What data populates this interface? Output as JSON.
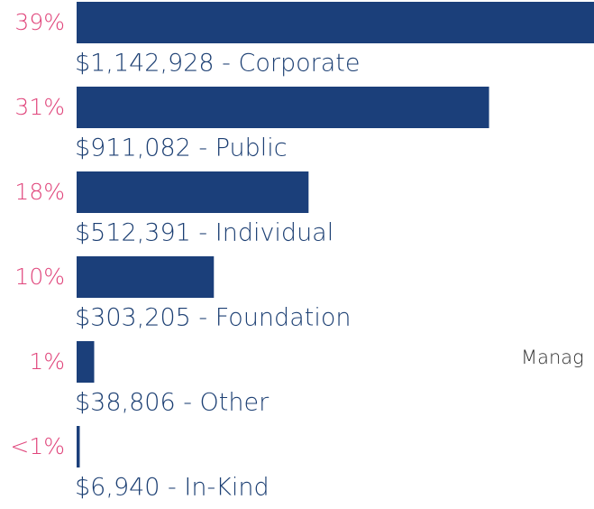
{
  "chart_data": {
    "type": "bar",
    "orientation": "horizontal",
    "labels": [
      "$1,142,928 - Corporate",
      "$911,082 - Public",
      "$512,391 - Individual",
      "$303,205 - Foundation",
      "$38,806 - Other",
      "$6,940 - In-Kind"
    ],
    "values": [
      1142928,
      911082,
      512391,
      303205,
      38806,
      6940
    ],
    "percents": [
      39,
      31,
      18,
      10,
      1,
      0.24
    ],
    "percent_labels": [
      "39%",
      "31%",
      "18%",
      "10%",
      "1%",
      "<1%"
    ],
    "color": "#1b3f7a",
    "annotation": "Manag"
  }
}
